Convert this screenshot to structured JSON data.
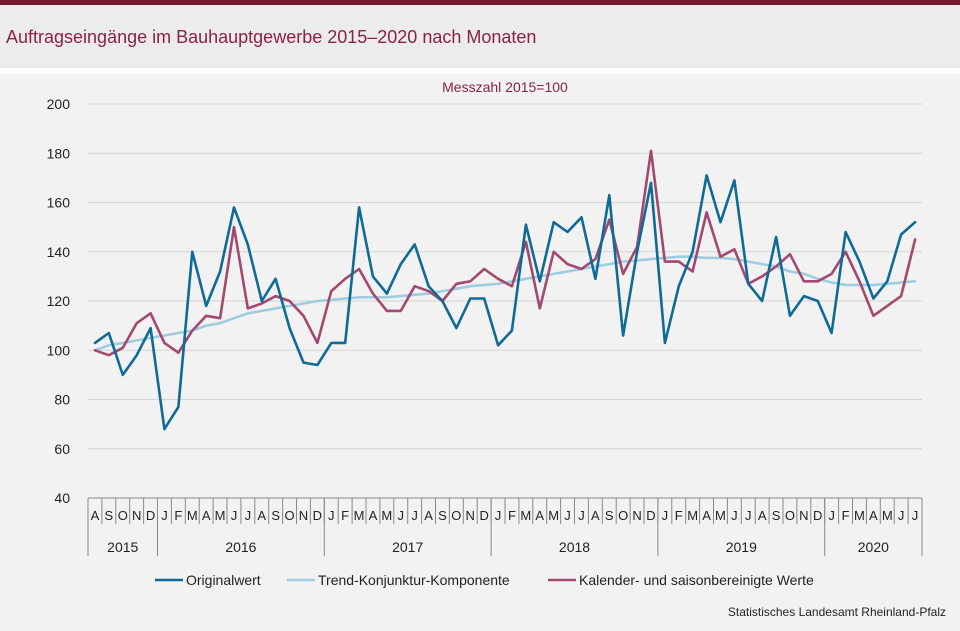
{
  "header": {
    "title": "Auftragseingänge im Bauhauptgewerbe 2015–2020 nach Monaten"
  },
  "source": "Statistisches Landesamt Rheinland-Pfalz",
  "chart_data": {
    "type": "line",
    "subtitle": "Messzahl 2015=100",
    "ylim": [
      40,
      200
    ],
    "yticks": [
      40,
      60,
      80,
      100,
      120,
      140,
      160,
      180,
      200
    ],
    "grid": true,
    "legend_position": "bottom",
    "categories": [
      "A",
      "S",
      "O",
      "N",
      "D",
      "J",
      "F",
      "M",
      "A",
      "M",
      "J",
      "J",
      "A",
      "S",
      "O",
      "N",
      "D",
      "J",
      "F",
      "M",
      "A",
      "M",
      "J",
      "J",
      "A",
      "S",
      "O",
      "N",
      "D",
      "J",
      "F",
      "M",
      "A",
      "M",
      "J",
      "J",
      "A",
      "S",
      "O",
      "N",
      "D",
      "J",
      "F",
      "M",
      "A",
      "M",
      "J",
      "J",
      "A",
      "S",
      "O",
      "N",
      "D",
      "J",
      "F",
      "M",
      "A",
      "M",
      "J",
      "J"
    ],
    "years": [
      {
        "label": "2015",
        "start": 0,
        "count": 5
      },
      {
        "label": "2016",
        "start": 5,
        "count": 12
      },
      {
        "label": "2017",
        "start": 17,
        "count": 12
      },
      {
        "label": "2018",
        "start": 29,
        "count": 12
      },
      {
        "label": "2019",
        "start": 41,
        "count": 12
      },
      {
        "label": "2020",
        "start": 53,
        "count": 7
      }
    ],
    "series": [
      {
        "name": "Originalwert",
        "color": "#0f6a96",
        "values": [
          103,
          107,
          90,
          98,
          109,
          68,
          77,
          140,
          118,
          132,
          158,
          143,
          120,
          129,
          109,
          95,
          94,
          103,
          103,
          158,
          130,
          123,
          135,
          143,
          126,
          120,
          109,
          121,
          121,
          102,
          108,
          151,
          128,
          152,
          148,
          154,
          129,
          163,
          106,
          140,
          168,
          103,
          126,
          140,
          171,
          152,
          169,
          127,
          120,
          146,
          114,
          122,
          120,
          107,
          148,
          136,
          121,
          128,
          147,
          152
        ]
      },
      {
        "name": "Trend-Konjunktur-Komponente",
        "color": "#9fcce0",
        "values": [
          100,
          102,
          103,
          104,
          105,
          106,
          107,
          108,
          110,
          111,
          113,
          115,
          116,
          117,
          118,
          119,
          120,
          120.5,
          121,
          121.5,
          121.5,
          121.5,
          122,
          122.5,
          123,
          124,
          125,
          126,
          126.5,
          127,
          128,
          129,
          130,
          131,
          132,
          133,
          134,
          135,
          136,
          136.5,
          137,
          137.5,
          138,
          138,
          137.5,
          137.5,
          137,
          136,
          135,
          134,
          132,
          131,
          129,
          127.5,
          126.5,
          126.5,
          126.5,
          127,
          127.5,
          128
        ]
      },
      {
        "name": "Kalender- und saisonbereinigte Werte",
        "color": "#a3486f",
        "values": [
          100,
          98,
          101,
          111,
          115,
          103,
          99,
          108,
          114,
          113,
          150,
          117,
          119,
          122,
          120,
          114,
          103,
          124,
          129,
          133,
          123,
          116,
          116,
          126,
          124,
          120,
          127,
          128,
          133,
          129,
          126,
          144,
          117,
          140,
          135,
          133,
          137,
          153,
          131,
          142,
          181,
          136,
          136,
          132,
          156,
          138,
          141,
          127,
          130,
          134,
          139,
          128,
          128,
          131,
          140,
          128,
          114,
          118,
          122,
          145
        ]
      }
    ]
  }
}
